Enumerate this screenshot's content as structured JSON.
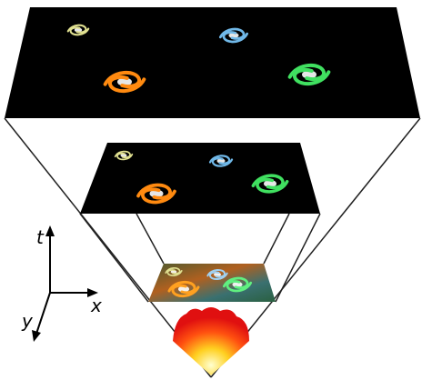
{
  "axes": {
    "t": "t",
    "x": "x",
    "y": "y"
  }
}
